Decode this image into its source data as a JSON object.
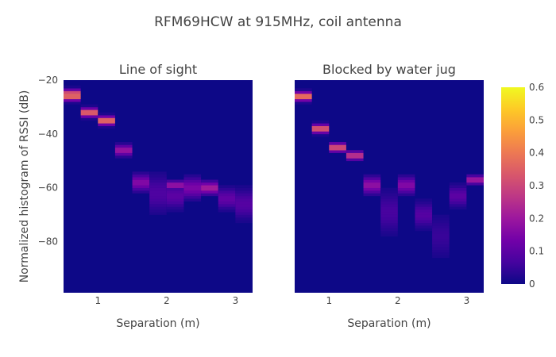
{
  "chart_data": {
    "type": "heatmap",
    "title": "RFM69HCW at 915MHz, coil antenna",
    "ylabel": "Normalized histogram of RSSI (dB)",
    "xlabel": "Separation (m)",
    "ylim": [
      -99,
      -20
    ],
    "yticks": [
      -20,
      -40,
      -60,
      -80
    ],
    "ytick_labels": [
      "−20",
      "−40",
      "−60",
      "−80"
    ],
    "xlim": [
      0.5,
      3.25
    ],
    "xticks": [
      1,
      2,
      3
    ],
    "xtick_labels": [
      "1",
      "2",
      "3"
    ],
    "colorscale": "plasma",
    "colorbar": {
      "range": [
        0,
        0.6
      ],
      "ticks": [
        0,
        0.1,
        0.2,
        0.3,
        0.4,
        0.5,
        0.6
      ],
      "tick_labels": [
        "0",
        "0.1",
        "0.2",
        "0.3",
        "0.4",
        "0.5",
        "0.6"
      ]
    },
    "bin_width": 0.25,
    "background_value": 0,
    "panels": [
      {
        "title": "Line of sight",
        "columns": [
          {
            "x": 0.625,
            "peaks": [
              [
                -26,
                0.4,
                1
              ],
              [
                -25,
                0.35,
                1
              ]
            ]
          },
          {
            "x": 0.875,
            "peaks": [
              [
                -32,
                0.38,
                1
              ]
            ]
          },
          {
            "x": 1.125,
            "peaks": [
              [
                -35,
                0.4,
                1
              ]
            ]
          },
          {
            "x": 1.375,
            "peaks": [
              [
                -46,
                0.2,
                1.3
              ]
            ]
          },
          {
            "x": 1.625,
            "peaks": [
              [
                -58,
                0.16,
                2
              ]
            ]
          },
          {
            "x": 1.875,
            "peaks": [
              [
                -62,
                0.08,
                4.5
              ]
            ]
          },
          {
            "x": 2.125,
            "peaks": [
              [
                -59,
                0.2,
                1
              ],
              [
                -63,
                0.1,
                3
              ]
            ]
          },
          {
            "x": 2.375,
            "peaks": [
              [
                -60,
                0.15,
                2.5
              ]
            ]
          },
          {
            "x": 2.625,
            "peaks": [
              [
                -60,
                0.22,
                1.5
              ]
            ]
          },
          {
            "x": 2.875,
            "peaks": [
              [
                -64,
                0.11,
                2.5
              ]
            ]
          },
          {
            "x": 3.125,
            "peaks": [
              [
                -66,
                0.09,
                3.5
              ]
            ]
          }
        ]
      },
      {
        "title": "Blocked by water jug",
        "columns": [
          {
            "x": 0.625,
            "peaks": [
              [
                -26,
                0.42,
                1
              ]
            ]
          },
          {
            "x": 0.875,
            "peaks": [
              [
                -38,
                0.36,
                1
              ]
            ]
          },
          {
            "x": 1.125,
            "peaks": [
              [
                -45,
                0.34,
                1
              ]
            ]
          },
          {
            "x": 1.375,
            "peaks": [
              [
                -48,
                0.28,
                1
              ]
            ]
          },
          {
            "x": 1.625,
            "peaks": [
              [
                -59,
                0.18,
                2
              ]
            ]
          },
          {
            "x": 1.875,
            "peaks": [
              [
                -69,
                0.07,
                5
              ]
            ]
          },
          {
            "x": 2.125,
            "peaks": [
              [
                -59,
                0.16,
                2
              ]
            ]
          },
          {
            "x": 2.375,
            "peaks": [
              [
                -70,
                0.09,
                3
              ]
            ]
          },
          {
            "x": 2.625,
            "peaks": [
              [
                -78,
                0.05,
                5
              ]
            ]
          },
          {
            "x": 2.875,
            "peaks": [
              [
                -63,
                0.1,
                2.5
              ]
            ]
          },
          {
            "x": 3.125,
            "peaks": [
              [
                -57,
                0.22,
                1
              ]
            ]
          }
        ]
      }
    ]
  }
}
